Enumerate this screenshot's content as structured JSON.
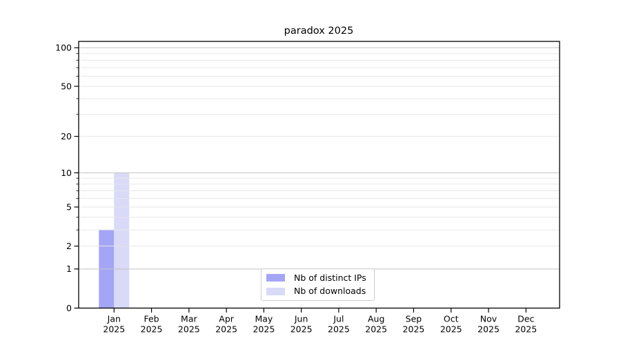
{
  "chart_data": {
    "type": "bar",
    "title": "paradox 2025",
    "categories": [
      "Jan",
      "Feb",
      "Mar",
      "Apr",
      "May",
      "Jun",
      "Jul",
      "Aug",
      "Sep",
      "Oct",
      "Nov",
      "Dec"
    ],
    "x_year": "2025",
    "series": [
      {
        "name": "Nb of distinct IPs",
        "color": "#a5a5f5",
        "values": [
          3,
          0,
          0,
          0,
          0,
          0,
          0,
          0,
          0,
          0,
          0,
          0
        ]
      },
      {
        "name": "Nb of downloads",
        "color": "#d9d9f8",
        "values": [
          10,
          0,
          0,
          0,
          0,
          0,
          0,
          0,
          0,
          0,
          0,
          0
        ]
      }
    ],
    "y_axis": {
      "scale": "log10(value+1)",
      "tick_labels": [
        0,
        1,
        2,
        5,
        10,
        20,
        50,
        100
      ],
      "major_grid_values": [
        1,
        10,
        100
      ],
      "minor_grid_values": [
        2,
        3,
        4,
        5,
        6,
        7,
        8,
        9,
        20,
        30,
        40,
        50,
        60,
        70,
        80,
        90
      ],
      "ylim": [
        0,
        112
      ]
    },
    "legend": {
      "items": [
        "Nb of distinct IPs",
        "Nb of downloads"
      ],
      "position": "lower-center-inside"
    },
    "colors": {
      "major_grid": "#c3c3c3",
      "minor_grid": "#e7e7e7",
      "axis": "#000000",
      "text": "#000000",
      "background": "#ffffff"
    }
  }
}
